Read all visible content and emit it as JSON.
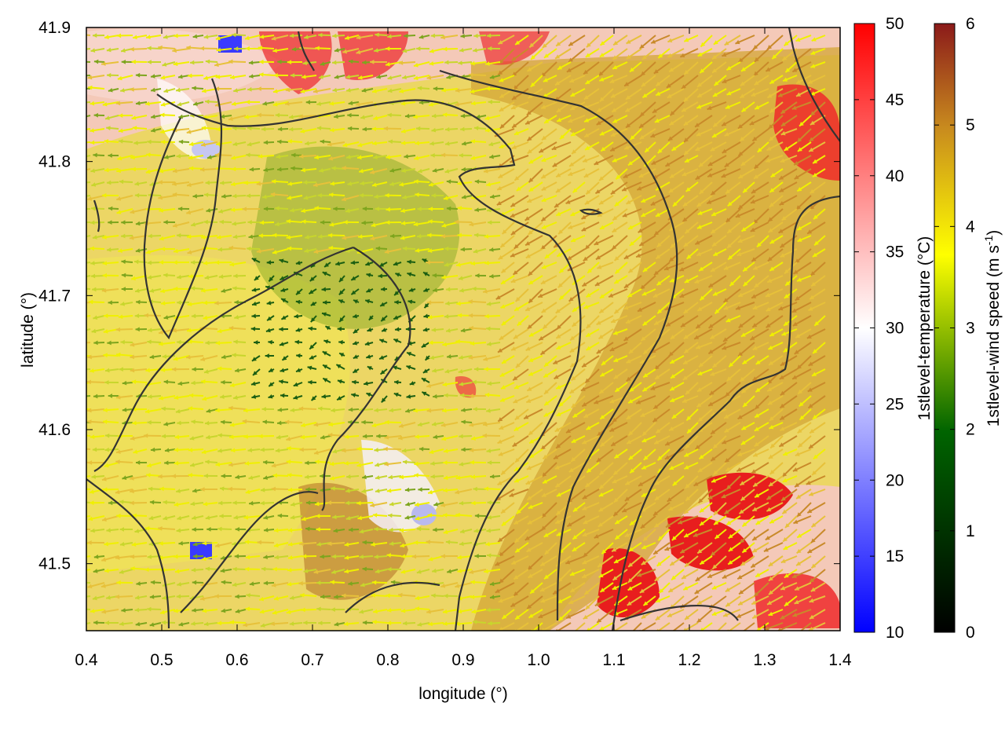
{
  "chart_data": {
    "type": "heatmap",
    "title": "",
    "xlabel": "longitude (°)",
    "ylabel": "latitude (°)",
    "xlim": [
      0.4,
      1.4
    ],
    "ylim": [
      41.45,
      41.9
    ],
    "xticks": [
      "0.4",
      "0.5",
      "0.6",
      "0.7",
      "0.8",
      "0.9",
      "1.0",
      "1.1",
      "1.2",
      "1.3",
      "1.4"
    ],
    "yticks": [
      "41.5",
      "41.6",
      "41.7",
      "41.8",
      "41.9"
    ],
    "grid": false,
    "overlays": [
      "wind vector arrows",
      "dark grey contour lines"
    ],
    "colorbars": [
      {
        "label": "1stlevel-temperature (°C)",
        "range": [
          10,
          50
        ],
        "ticks": [
          "10",
          "15",
          "20",
          "25",
          "30",
          "35",
          "40",
          "45",
          "50"
        ],
        "colormap": [
          "#0000ff",
          "#ffffff",
          "#ff0000"
        ]
      },
      {
        "label_main": "1stlevel-wind speed (m s",
        "label_sup": "-1",
        "label_end": ")",
        "range": [
          0,
          6
        ],
        "ticks": [
          "0",
          "1",
          "2",
          "3",
          "4",
          "5",
          "6"
        ],
        "colormap": [
          "#000000",
          "#006400",
          "#ffff00",
          "#c88a1e",
          "#8b1a1a"
        ]
      }
    ]
  }
}
